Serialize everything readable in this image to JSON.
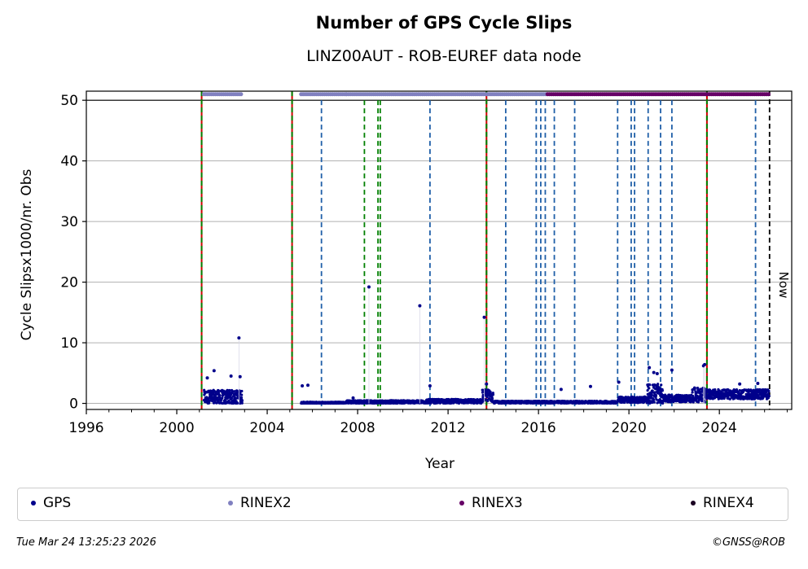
{
  "chart_data": {
    "type": "scatter",
    "title": "Number of GPS Cycle Slips",
    "subtitle": "LINZ00AUT - ROB-EUREF data node",
    "xlabel": "Year",
    "ylabel": "Cycle Slipsx1000/nr. Obs",
    "xlim": [
      1996,
      2027.2
    ],
    "ylim": [
      -1,
      51.5
    ],
    "x_ticks": [
      1996,
      2000,
      2004,
      2008,
      2012,
      2016,
      2020,
      2024
    ],
    "x_tick_labels": [
      "1996",
      "2000",
      "2004",
      "2008",
      "2012",
      "2016",
      "2020",
      "2024"
    ],
    "y_ticks": [
      0,
      10,
      20,
      30,
      40,
      50
    ],
    "y_tick_labels": [
      "0",
      "10",
      "20",
      "30",
      "40",
      "50"
    ],
    "grid": "horizontal",
    "legend_placement": "below",
    "now_label": "Now",
    "now_date": 2026.22,
    "series": [
      {
        "name": "GPS",
        "color": "#00008b",
        "baseline_segments": [
          {
            "from": 2001.2,
            "to": 2002.9,
            "level": 1.0,
            "spread": 1.2
          },
          {
            "from": 2005.5,
            "to": 2007.5,
            "level": 0.1,
            "spread": 0.15
          },
          {
            "from": 2007.5,
            "to": 2011.0,
            "level": 0.25,
            "spread": 0.25
          },
          {
            "from": 2011.0,
            "to": 2013.5,
            "level": 0.35,
            "spread": 0.35
          },
          {
            "from": 2013.5,
            "to": 2014.0,
            "level": 1.3,
            "spread": 1.0
          },
          {
            "from": 2014.0,
            "to": 2019.5,
            "level": 0.2,
            "spread": 0.2
          },
          {
            "from": 2019.5,
            "to": 2020.8,
            "level": 0.6,
            "spread": 0.5
          },
          {
            "from": 2020.8,
            "to": 2021.5,
            "level": 1.6,
            "spread": 1.6
          },
          {
            "from": 2021.5,
            "to": 2022.8,
            "level": 0.8,
            "spread": 0.6
          },
          {
            "from": 2022.8,
            "to": 2023.4,
            "level": 1.4,
            "spread": 1.2
          },
          {
            "from": 2023.4,
            "to": 2026.2,
            "level": 1.5,
            "spread": 0.8
          }
        ],
        "outliers": [
          {
            "x": 2001.35,
            "y": 4.2
          },
          {
            "x": 2001.65,
            "y": 5.4
          },
          {
            "x": 2002.4,
            "y": 4.5
          },
          {
            "x": 2002.75,
            "y": 10.8
          },
          {
            "x": 2002.8,
            "y": 4.4
          },
          {
            "x": 2005.55,
            "y": 2.9
          },
          {
            "x": 2005.8,
            "y": 3.0
          },
          {
            "x": 2007.8,
            "y": 0.9
          },
          {
            "x": 2008.5,
            "y": 19.2
          },
          {
            "x": 2010.75,
            "y": 16.1
          },
          {
            "x": 2011.2,
            "y": 2.9
          },
          {
            "x": 2013.6,
            "y": 14.2
          },
          {
            "x": 2013.7,
            "y": 3.2
          },
          {
            "x": 2017.0,
            "y": 2.3
          },
          {
            "x": 2018.3,
            "y": 2.8
          },
          {
            "x": 2019.55,
            "y": 3.5
          },
          {
            "x": 2020.9,
            "y": 5.9
          },
          {
            "x": 2021.1,
            "y": 5.1
          },
          {
            "x": 2021.25,
            "y": 4.9
          },
          {
            "x": 2021.9,
            "y": 5.5
          },
          {
            "x": 2023.3,
            "y": 6.2
          },
          {
            "x": 2023.35,
            "y": 6.4
          },
          {
            "x": 2024.9,
            "y": 3.2
          },
          {
            "x": 2025.7,
            "y": 3.3
          }
        ]
      },
      {
        "name": "RINEX2",
        "color": "#8080c0",
        "y": 51,
        "ranges": [
          [
            2001.2,
            2002.9
          ],
          [
            2005.5,
            2007.5
          ],
          [
            2007.5,
            2016.4
          ]
        ]
      },
      {
        "name": "RINEX3",
        "color": "#660066",
        "y": 51,
        "ranges": [
          [
            2016.4,
            2026.2
          ]
        ]
      },
      {
        "name": "RINEX4",
        "color": "#1a0022",
        "y": 51,
        "ranges": []
      }
    ],
    "event_lines": [
      {
        "x": 2001.1,
        "style": "red-green"
      },
      {
        "x": 2005.1,
        "style": "red-green"
      },
      {
        "x": 2006.4,
        "style": "blue"
      },
      {
        "x": 2008.3,
        "style": "green"
      },
      {
        "x": 2008.9,
        "style": "green"
      },
      {
        "x": 2009.0,
        "style": "green"
      },
      {
        "x": 2011.2,
        "style": "blue"
      },
      {
        "x": 2013.7,
        "style": "red-green"
      },
      {
        "x": 2014.55,
        "style": "blue"
      },
      {
        "x": 2015.9,
        "style": "blue"
      },
      {
        "x": 2016.1,
        "style": "blue"
      },
      {
        "x": 2016.3,
        "style": "blue"
      },
      {
        "x": 2016.7,
        "style": "blue"
      },
      {
        "x": 2017.6,
        "style": "blue"
      },
      {
        "x": 2019.5,
        "style": "blue"
      },
      {
        "x": 2020.1,
        "style": "blue"
      },
      {
        "x": 2020.25,
        "style": "blue"
      },
      {
        "x": 2020.85,
        "style": "blue"
      },
      {
        "x": 2021.4,
        "style": "blue"
      },
      {
        "x": 2021.9,
        "style": "blue"
      },
      {
        "x": 2023.45,
        "style": "red-green"
      },
      {
        "x": 2025.6,
        "style": "blue"
      },
      {
        "x": 2026.22,
        "style": "now"
      }
    ],
    "colors": {
      "blue_event": "#1f5fa8",
      "green_event": "#008000",
      "red_event": "#cc0000",
      "now_event": "#000000",
      "grid": "#b0b0b0"
    }
  },
  "legend": {
    "items": [
      {
        "label": "GPS",
        "color": "#00008b"
      },
      {
        "label": "RINEX2",
        "color": "#8080c0"
      },
      {
        "label": "RINEX3",
        "color": "#660066"
      },
      {
        "label": "RINEX4",
        "color": "#1a0022"
      }
    ]
  },
  "footer": {
    "timestamp": "Tue Mar 24 13:25:23 2026",
    "copyright": "©GNSS@ROB"
  }
}
